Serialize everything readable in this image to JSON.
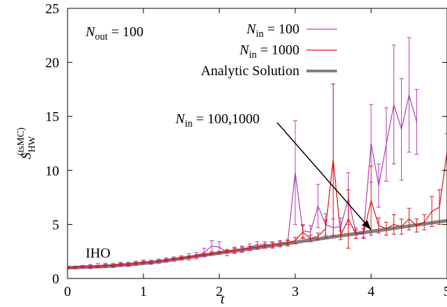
{
  "chart_data": {
    "type": "line",
    "xlabel": "t",
    "ylabel": "S_HW^(tsMC)",
    "ylabel_main": "S",
    "ylabel_sub": "HW",
    "ylabel_sup": "(tsMC)",
    "xlim": [
      0,
      5
    ],
    "ylim": [
      0,
      25
    ],
    "x_ticks": [
      0,
      1,
      2,
      3,
      4,
      5
    ],
    "y_ticks": [
      0,
      5,
      10,
      15,
      20,
      25
    ],
    "grid": false,
    "legend_position": "top-right",
    "annotations": {
      "nout": {
        "main": "N",
        "sub": "out",
        "rest": " = 100"
      },
      "iho": "IHO",
      "arrow": {
        "main": "N",
        "sub": "in",
        "rest": " = 100,1000",
        "target": [
          4.0,
          4.5
        ]
      }
    },
    "series": [
      {
        "name": "N_in = 100",
        "label": {
          "main": "N",
          "sub": "in",
          "rest": " = 100"
        },
        "color": "#b040b0",
        "x": [
          0,
          0.1,
          0.2,
          0.3,
          0.4,
          0.5,
          0.6,
          0.7,
          0.8,
          0.9,
          1.0,
          1.1,
          1.2,
          1.3,
          1.4,
          1.5,
          1.6,
          1.7,
          1.8,
          1.9,
          2.0,
          2.1,
          2.2,
          2.3,
          2.4,
          2.5,
          2.6,
          2.7,
          2.8,
          2.9,
          3.0,
          3.1,
          3.2,
          3.3,
          3.4,
          3.5,
          3.6,
          3.7,
          3.8,
          3.9,
          4.0,
          4.1,
          4.2,
          4.3,
          4.4,
          4.5,
          4.6
        ],
        "y": [
          1.0,
          1.0,
          1.1,
          1.1,
          1.2,
          1.2,
          1.2,
          1.3,
          1.3,
          1.4,
          1.5,
          1.5,
          1.6,
          1.7,
          1.8,
          1.9,
          2.0,
          2.1,
          2.4,
          3.0,
          2.9,
          2.4,
          2.6,
          2.7,
          2.9,
          3.1,
          3.1,
          3.1,
          3.2,
          3.3,
          9.8,
          4.4,
          4.3,
          6.7,
          5.0,
          4.7,
          4.8,
          7.4,
          4.2,
          4.3,
          12.5,
          8.6,
          12.4,
          16.1,
          13.8,
          17.0,
          14.5
        ],
        "err": [
          0.1,
          0.1,
          0.1,
          0.2,
          0.2,
          0.2,
          0.2,
          0.2,
          0.2,
          0.2,
          0.2,
          0.2,
          0.2,
          0.2,
          0.2,
          0.2,
          0.3,
          0.3,
          0.4,
          0.5,
          0.5,
          0.3,
          0.3,
          0.3,
          0.3,
          0.3,
          0.3,
          0.3,
          0.3,
          0.3,
          4.8,
          0.6,
          0.6,
          2.0,
          1.0,
          0.8,
          0.8,
          2.4,
          0.5,
          0.6,
          3.6,
          2.0,
          3.4,
          5.5,
          4.7,
          5.3,
          3.0
        ]
      },
      {
        "name": "N_in = 1000",
        "label": {
          "main": "N",
          "sub": "in",
          "rest": " = 1000"
        },
        "color": "#e01010",
        "x": [
          0,
          0.1,
          0.2,
          0.3,
          0.4,
          0.5,
          0.6,
          0.7,
          0.8,
          0.9,
          1.0,
          1.1,
          1.2,
          1.3,
          1.4,
          1.5,
          1.6,
          1.7,
          1.8,
          1.9,
          2.0,
          2.1,
          2.2,
          2.3,
          2.4,
          2.5,
          2.6,
          2.7,
          2.8,
          2.9,
          3.0,
          3.1,
          3.2,
          3.3,
          3.4,
          3.5,
          3.6,
          3.7,
          3.8,
          3.9,
          4.0,
          4.1,
          4.2,
          4.3,
          4.4,
          4.5,
          4.6,
          4.7,
          4.8,
          4.9,
          5.0
        ],
        "y": [
          1.0,
          1.0,
          1.1,
          1.1,
          1.1,
          1.2,
          1.2,
          1.3,
          1.3,
          1.4,
          1.5,
          1.5,
          1.6,
          1.7,
          1.8,
          1.9,
          2.0,
          2.1,
          2.2,
          2.3,
          2.4,
          2.5,
          2.6,
          2.7,
          2.8,
          2.9,
          3.0,
          3.1,
          3.2,
          3.3,
          3.5,
          4.3,
          3.7,
          3.9,
          4.6,
          11.0,
          4.0,
          5.5,
          4.1,
          4.2,
          7.2,
          4.9,
          4.6,
          5.0,
          4.8,
          5.5,
          4.9,
          5.2,
          6.2,
          6.6,
          11.7
        ],
        "err": [
          0.1,
          0.1,
          0.1,
          0.1,
          0.1,
          0.1,
          0.1,
          0.1,
          0.1,
          0.1,
          0.1,
          0.1,
          0.1,
          0.1,
          0.1,
          0.1,
          0.1,
          0.1,
          0.1,
          0.1,
          0.1,
          0.1,
          0.2,
          0.2,
          0.2,
          0.2,
          0.2,
          0.2,
          0.2,
          0.2,
          0.3,
          0.6,
          0.3,
          0.3,
          0.8,
          7.0,
          0.4,
          2.7,
          0.4,
          0.4,
          3.2,
          0.7,
          0.6,
          0.9,
          0.7,
          1.0,
          0.6,
          0.7,
          1.4,
          1.6,
          1.7
        ]
      },
      {
        "name": "Analytic Solution",
        "label": {
          "main": "Analytic Solution",
          "sub": "",
          "rest": ""
        },
        "color": "#808080",
        "x": [
          0,
          0.25,
          0.5,
          0.75,
          1.0,
          1.25,
          1.5,
          1.75,
          2.0,
          2.25,
          2.5,
          2.75,
          3.0,
          3.25,
          3.5,
          3.75,
          4.0,
          4.25,
          4.5,
          4.75,
          5.0
        ],
        "y": [
          1.0,
          1.05,
          1.12,
          1.25,
          1.4,
          1.6,
          1.85,
          2.1,
          2.35,
          2.6,
          2.85,
          3.1,
          3.35,
          3.6,
          3.85,
          4.1,
          4.35,
          4.6,
          4.85,
          5.1,
          5.35
        ]
      }
    ]
  }
}
